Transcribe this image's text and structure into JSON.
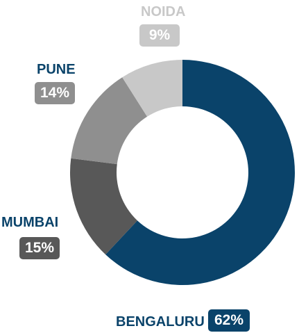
{
  "chart_data": {
    "type": "pie",
    "donut": true,
    "slices": [
      {
        "label": "BENGALURU",
        "value": 62,
        "value_label": "62%",
        "color": "#0a436a"
      },
      {
        "label": "MUMBAI",
        "value": 15,
        "value_label": "15%",
        "color": "#585858"
      },
      {
        "label": "PUNE",
        "value": 14,
        "value_label": "14%",
        "color": "#8f8f8f"
      },
      {
        "label": "NOIDA",
        "value": 9,
        "value_label": "9%",
        "color": "#c8c8c8"
      }
    ]
  }
}
